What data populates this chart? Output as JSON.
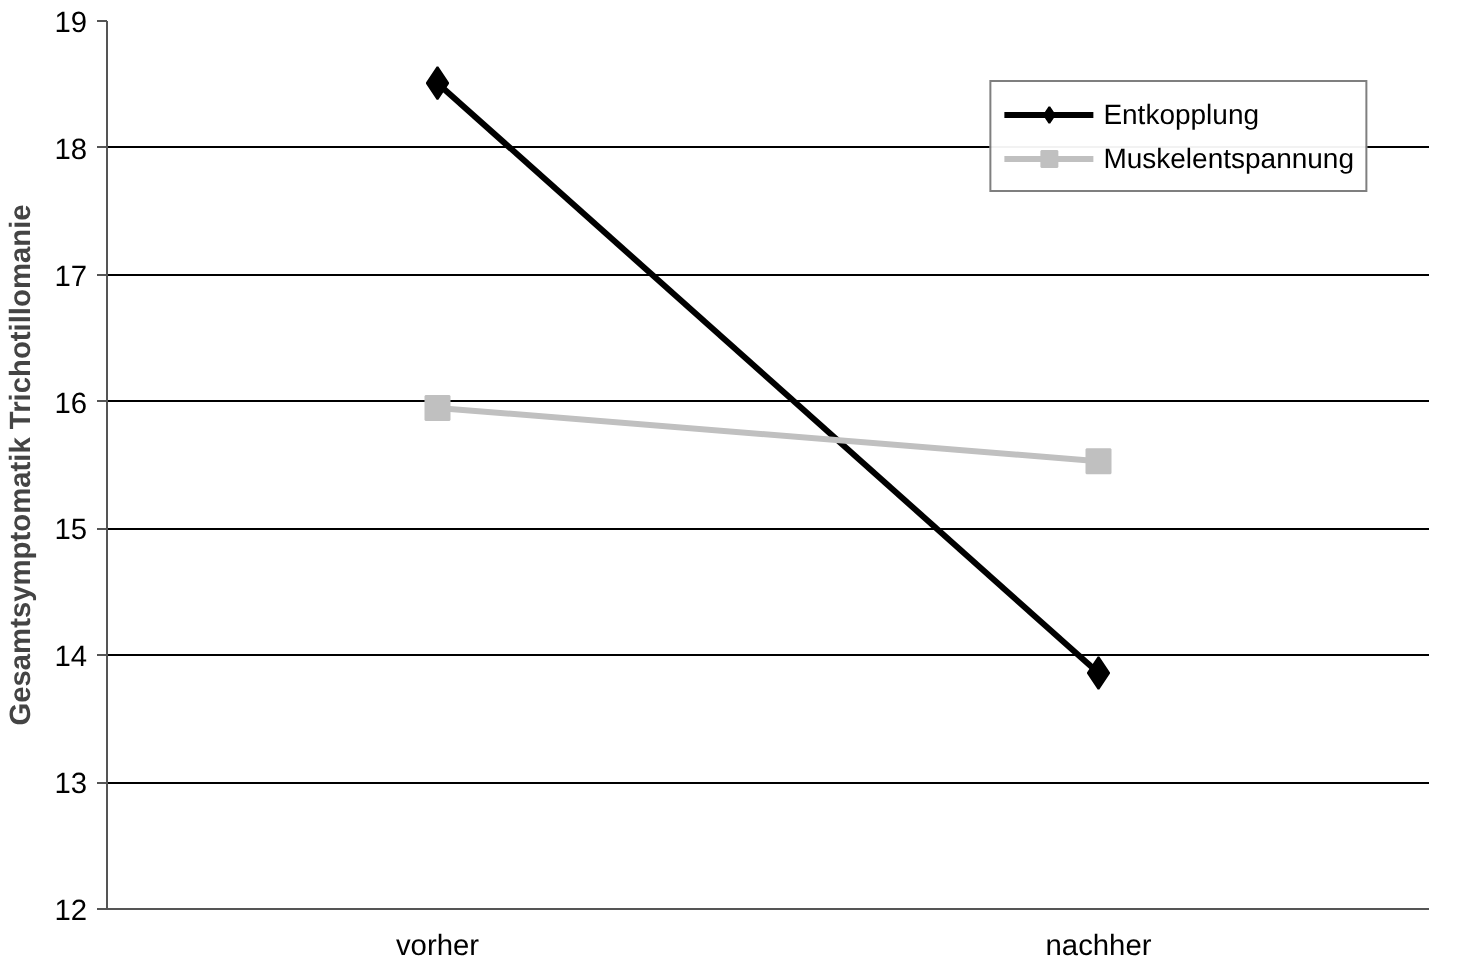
{
  "chart_data": {
    "type": "line",
    "ylabel": "Gesamtsymptomatik Trichotillomanie",
    "categories": [
      "vorher",
      "nachher"
    ],
    "series": [
      {
        "name": "Entkopplung",
        "color": "#000000",
        "values": [
          18.51,
          13.86
        ],
        "marker": "diamond"
      },
      {
        "name": "Muskelentspannung",
        "color": "#c0c0c0",
        "values": [
          15.95,
          15.53
        ],
        "marker": "square"
      }
    ],
    "ylim": [
      12,
      19
    ],
    "yticks": [
      12,
      13,
      14,
      15,
      16,
      17,
      18,
      19
    ],
    "grid": "y",
    "legend": "top right",
    "line_style": "solid"
  }
}
